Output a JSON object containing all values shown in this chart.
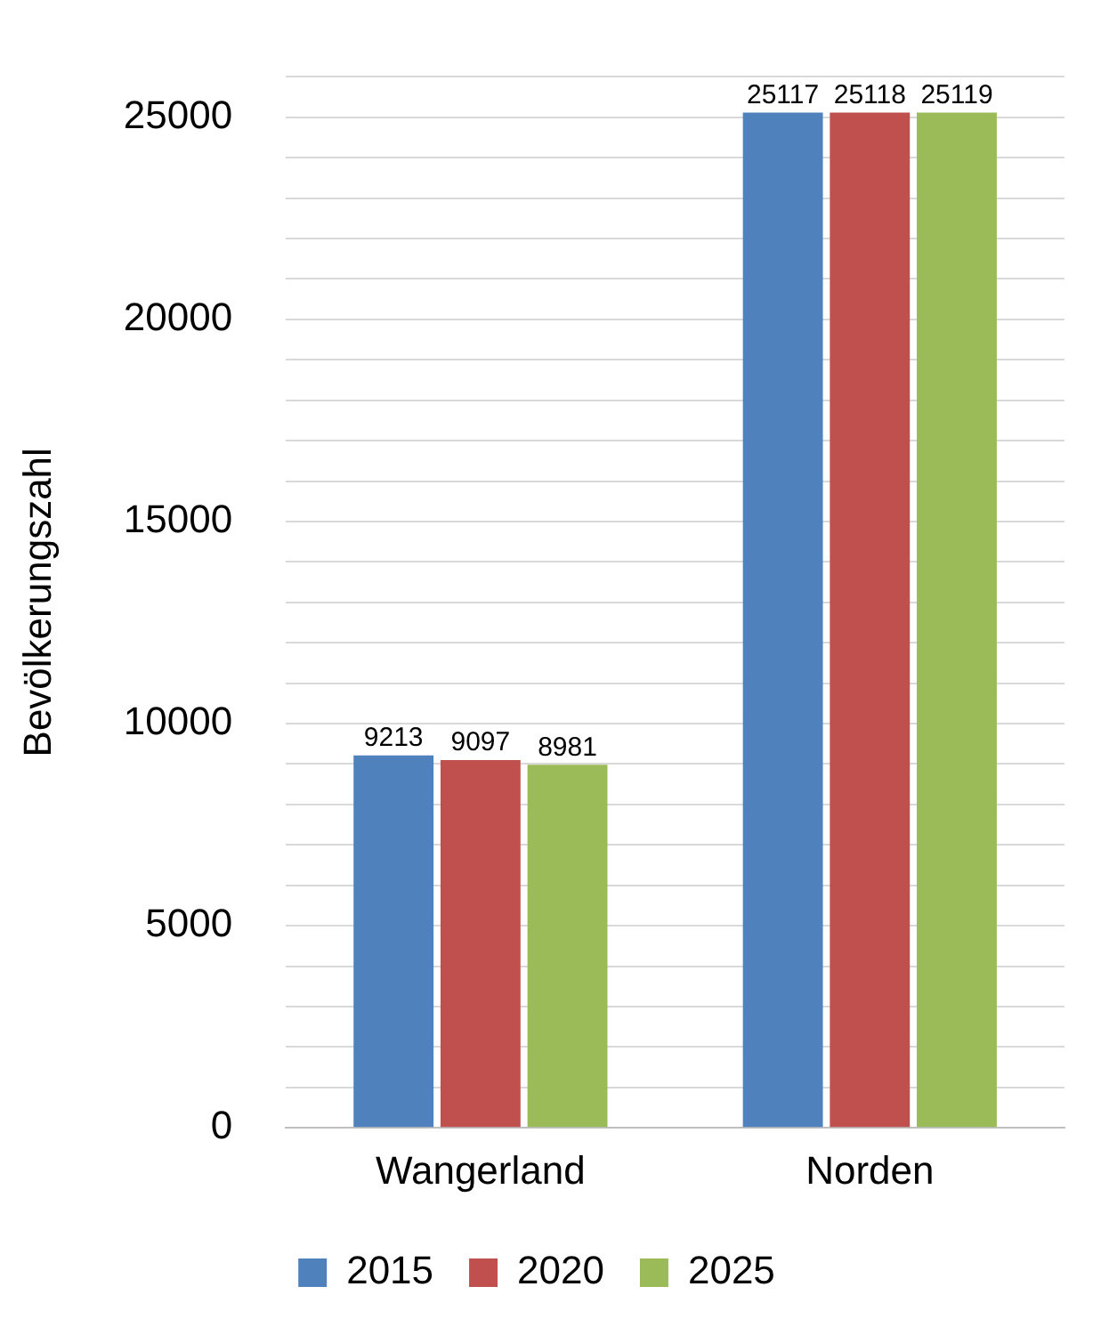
{
  "chart_data": {
    "type": "bar",
    "ylabel": "Bevölkerungszahl",
    "categories": [
      "Wangerland",
      "Norden"
    ],
    "series": [
      {
        "name": "2015",
        "color": "#4f81bd",
        "values": [
          9213,
          25117
        ]
      },
      {
        "name": "2020",
        "color": "#c0504d",
        "values": [
          9097,
          25118
        ]
      },
      {
        "name": "2025",
        "color": "#9bbb59",
        "values": [
          8981,
          25119
        ]
      }
    ],
    "ylim": [
      0,
      26000
    ],
    "yticks": [
      0,
      {
        "value": 1000,
        "label": null
      },
      {
        "value": 2000,
        "label": null
      },
      {
        "value": 3000,
        "label": null
      },
      {
        "value": 4000,
        "label": null
      },
      5000,
      {
        "value": 6000,
        "label": null
      },
      {
        "value": 7000,
        "label": null
      },
      {
        "value": 8000,
        "label": null
      },
      {
        "value": 9000,
        "label": null
      },
      10000,
      {
        "value": 11000,
        "label": null
      },
      {
        "value": 12000,
        "label": null
      },
      {
        "value": 13000,
        "label": null
      },
      {
        "value": 14000,
        "label": null
      },
      15000,
      {
        "value": 16000,
        "label": null
      },
      {
        "value": 17000,
        "label": null
      },
      {
        "value": 18000,
        "label": null
      },
      {
        "value": 19000,
        "label": null
      },
      20000,
      {
        "value": 21000,
        "label": null
      },
      {
        "value": 22000,
        "label": null
      },
      {
        "value": 23000,
        "label": null
      },
      {
        "value": 24000,
        "label": null
      },
      25000,
      {
        "value": 26000,
        "label": null
      }
    ],
    "grid": "y",
    "legend": "bottom",
    "data_labels": true
  }
}
